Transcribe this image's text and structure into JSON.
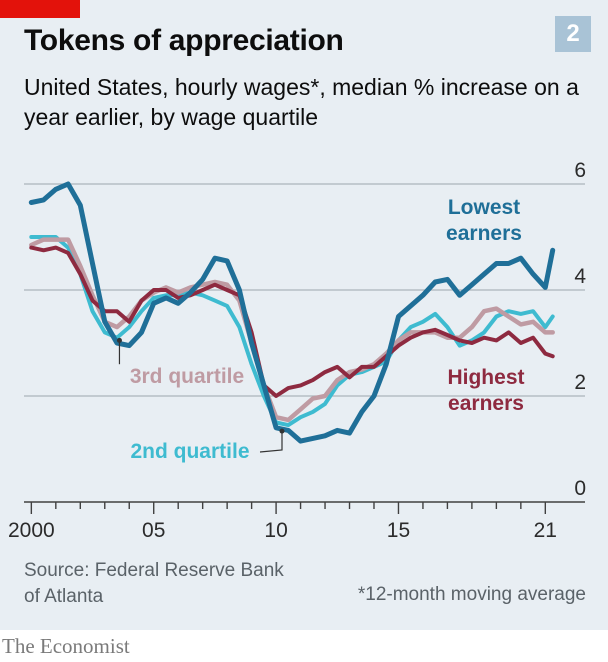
{
  "header": {
    "title": "Tokens of appreciation",
    "chart_number": "2",
    "subtitle": "United States, hourly wages*, median % increase on a year earlier, by wage quartile"
  },
  "footer": {
    "source": "Source: Federal Reserve Bank of Atlanta",
    "footnote": "*12-month moving average",
    "brand": "The Economist"
  },
  "colors": {
    "lowest": "#1f6f98",
    "second": "#3ebbd0",
    "third": "#bf9ba3",
    "highest": "#8e2a40",
    "grid": "#aab4ba",
    "panel": "#e8eef3",
    "brand_red": "#e3120b"
  },
  "chart_data": {
    "type": "line",
    "title": "Tokens of appreciation",
    "xlabel": "",
    "ylabel": "",
    "xlim": [
      1999.7,
      2021.6
    ],
    "ylim": [
      0,
      6
    ],
    "yticks": [
      0,
      2,
      4,
      6
    ],
    "xticks": [
      {
        "value": 2000,
        "label": "2000"
      },
      {
        "value": 2005,
        "label": "05"
      },
      {
        "value": 2010,
        "label": "10"
      },
      {
        "value": 2015,
        "label": "15"
      },
      {
        "value": 2021,
        "label": "21"
      }
    ],
    "grid": true,
    "series": [
      {
        "name": "2nd quartile",
        "label_lines": [
          "2nd quartile"
        ],
        "x": [
          2000,
          2000.5,
          2001,
          2001.5,
          2002,
          2002.5,
          2003,
          2003.5,
          2004,
          2004.5,
          2005,
          2005.5,
          2006,
          2006.5,
          2007,
          2007.5,
          2008,
          2008.5,
          2009,
          2009.5,
          2010,
          2010.5,
          2011,
          2011.5,
          2012,
          2012.5,
          2013,
          2013.5,
          2014,
          2014.5,
          2015,
          2015.5,
          2016,
          2016.5,
          2017,
          2017.5,
          2018,
          2018.5,
          2019,
          2019.5,
          2020,
          2020.5,
          2021,
          2021.3
        ],
        "values": [
          5.0,
          5.0,
          5.0,
          4.8,
          4.3,
          3.6,
          3.2,
          3.1,
          3.3,
          3.6,
          3.85,
          3.9,
          3.9,
          3.95,
          3.9,
          3.8,
          3.7,
          3.3,
          2.6,
          2.0,
          1.5,
          1.45,
          1.6,
          1.7,
          1.85,
          2.2,
          2.4,
          2.45,
          2.55,
          2.65,
          3.05,
          3.3,
          3.4,
          3.55,
          3.3,
          2.95,
          3.05,
          3.2,
          3.5,
          3.6,
          3.55,
          3.6,
          3.3,
          3.5
        ]
      },
      {
        "name": "3rd quartile",
        "label_lines": [
          "3rd quartile"
        ],
        "x": [
          2000,
          2000.5,
          2001,
          2001.5,
          2002,
          2002.5,
          2003,
          2003.5,
          2004,
          2004.5,
          2005,
          2005.5,
          2006,
          2006.5,
          2007,
          2007.5,
          2008,
          2008.5,
          2009,
          2009.5,
          2010,
          2010.5,
          2011,
          2011.5,
          2012,
          2012.5,
          2013,
          2013.5,
          2014,
          2014.5,
          2015,
          2015.5,
          2016,
          2016.5,
          2017,
          2017.5,
          2018,
          2018.5,
          2019,
          2019.5,
          2020,
          2020.5,
          2021,
          2021.3
        ],
        "values": [
          4.85,
          4.95,
          4.95,
          4.95,
          4.45,
          3.9,
          3.4,
          3.3,
          3.5,
          3.8,
          3.95,
          4.05,
          3.95,
          4.05,
          4.1,
          4.15,
          4.1,
          3.8,
          3.0,
          2.2,
          1.6,
          1.55,
          1.75,
          1.95,
          2.0,
          2.3,
          2.45,
          2.5,
          2.6,
          2.8,
          3.05,
          3.2,
          3.2,
          3.2,
          3.1,
          3.1,
          3.3,
          3.6,
          3.65,
          3.5,
          3.35,
          3.4,
          3.2,
          3.2
        ]
      },
      {
        "name": "Highest earners",
        "label_lines": [
          "Highest",
          "earners"
        ],
        "x": [
          2000,
          2000.5,
          2001,
          2001.5,
          2002,
          2002.5,
          2003,
          2003.5,
          2004,
          2004.5,
          2005,
          2005.5,
          2006,
          2006.5,
          2007,
          2007.5,
          2008,
          2008.5,
          2009,
          2009.5,
          2010,
          2010.5,
          2011,
          2011.5,
          2012,
          2012.5,
          2013,
          2013.5,
          2014,
          2014.5,
          2015,
          2015.5,
          2016,
          2016.5,
          2017,
          2017.5,
          2018,
          2018.5,
          2019,
          2019.5,
          2020,
          2020.5,
          2021,
          2021.3
        ],
        "values": [
          4.8,
          4.75,
          4.8,
          4.7,
          4.3,
          3.8,
          3.6,
          3.6,
          3.4,
          3.8,
          4.0,
          4.0,
          3.85,
          3.9,
          4.0,
          4.1,
          4.0,
          3.9,
          3.2,
          2.2,
          2.0,
          2.15,
          2.2,
          2.3,
          2.45,
          2.55,
          2.35,
          2.55,
          2.55,
          2.75,
          2.95,
          3.1,
          3.2,
          3.25,
          3.15,
          3.05,
          3.0,
          3.1,
          3.05,
          3.2,
          3.0,
          3.1,
          2.8,
          2.75
        ]
      },
      {
        "name": "Lowest earners",
        "label_lines": [
          "Lowest",
          "earners"
        ],
        "x": [
          2000,
          2000.5,
          2001,
          2001.5,
          2002,
          2002.5,
          2003,
          2003.5,
          2004,
          2004.5,
          2005,
          2005.5,
          2006,
          2006.5,
          2007,
          2007.5,
          2008,
          2008.5,
          2009,
          2009.5,
          2010,
          2010.5,
          2011,
          2011.5,
          2012,
          2012.5,
          2013,
          2013.5,
          2014,
          2014.5,
          2015,
          2015.5,
          2016,
          2016.5,
          2017,
          2017.5,
          2018,
          2018.5,
          2019,
          2019.5,
          2020,
          2020.5,
          2021,
          2021.3
        ],
        "values": [
          5.65,
          5.7,
          5.9,
          6.0,
          5.6,
          4.5,
          3.4,
          3.0,
          2.95,
          3.2,
          3.75,
          3.85,
          3.75,
          3.95,
          4.2,
          4.6,
          4.55,
          4.0,
          3.0,
          2.2,
          1.4,
          1.35,
          1.15,
          1.2,
          1.25,
          1.35,
          1.3,
          1.7,
          2.0,
          2.6,
          3.5,
          3.7,
          3.9,
          4.15,
          4.2,
          3.9,
          4.1,
          4.3,
          4.5,
          4.5,
          4.6,
          4.3,
          4.05,
          4.75
        ]
      }
    ]
  }
}
